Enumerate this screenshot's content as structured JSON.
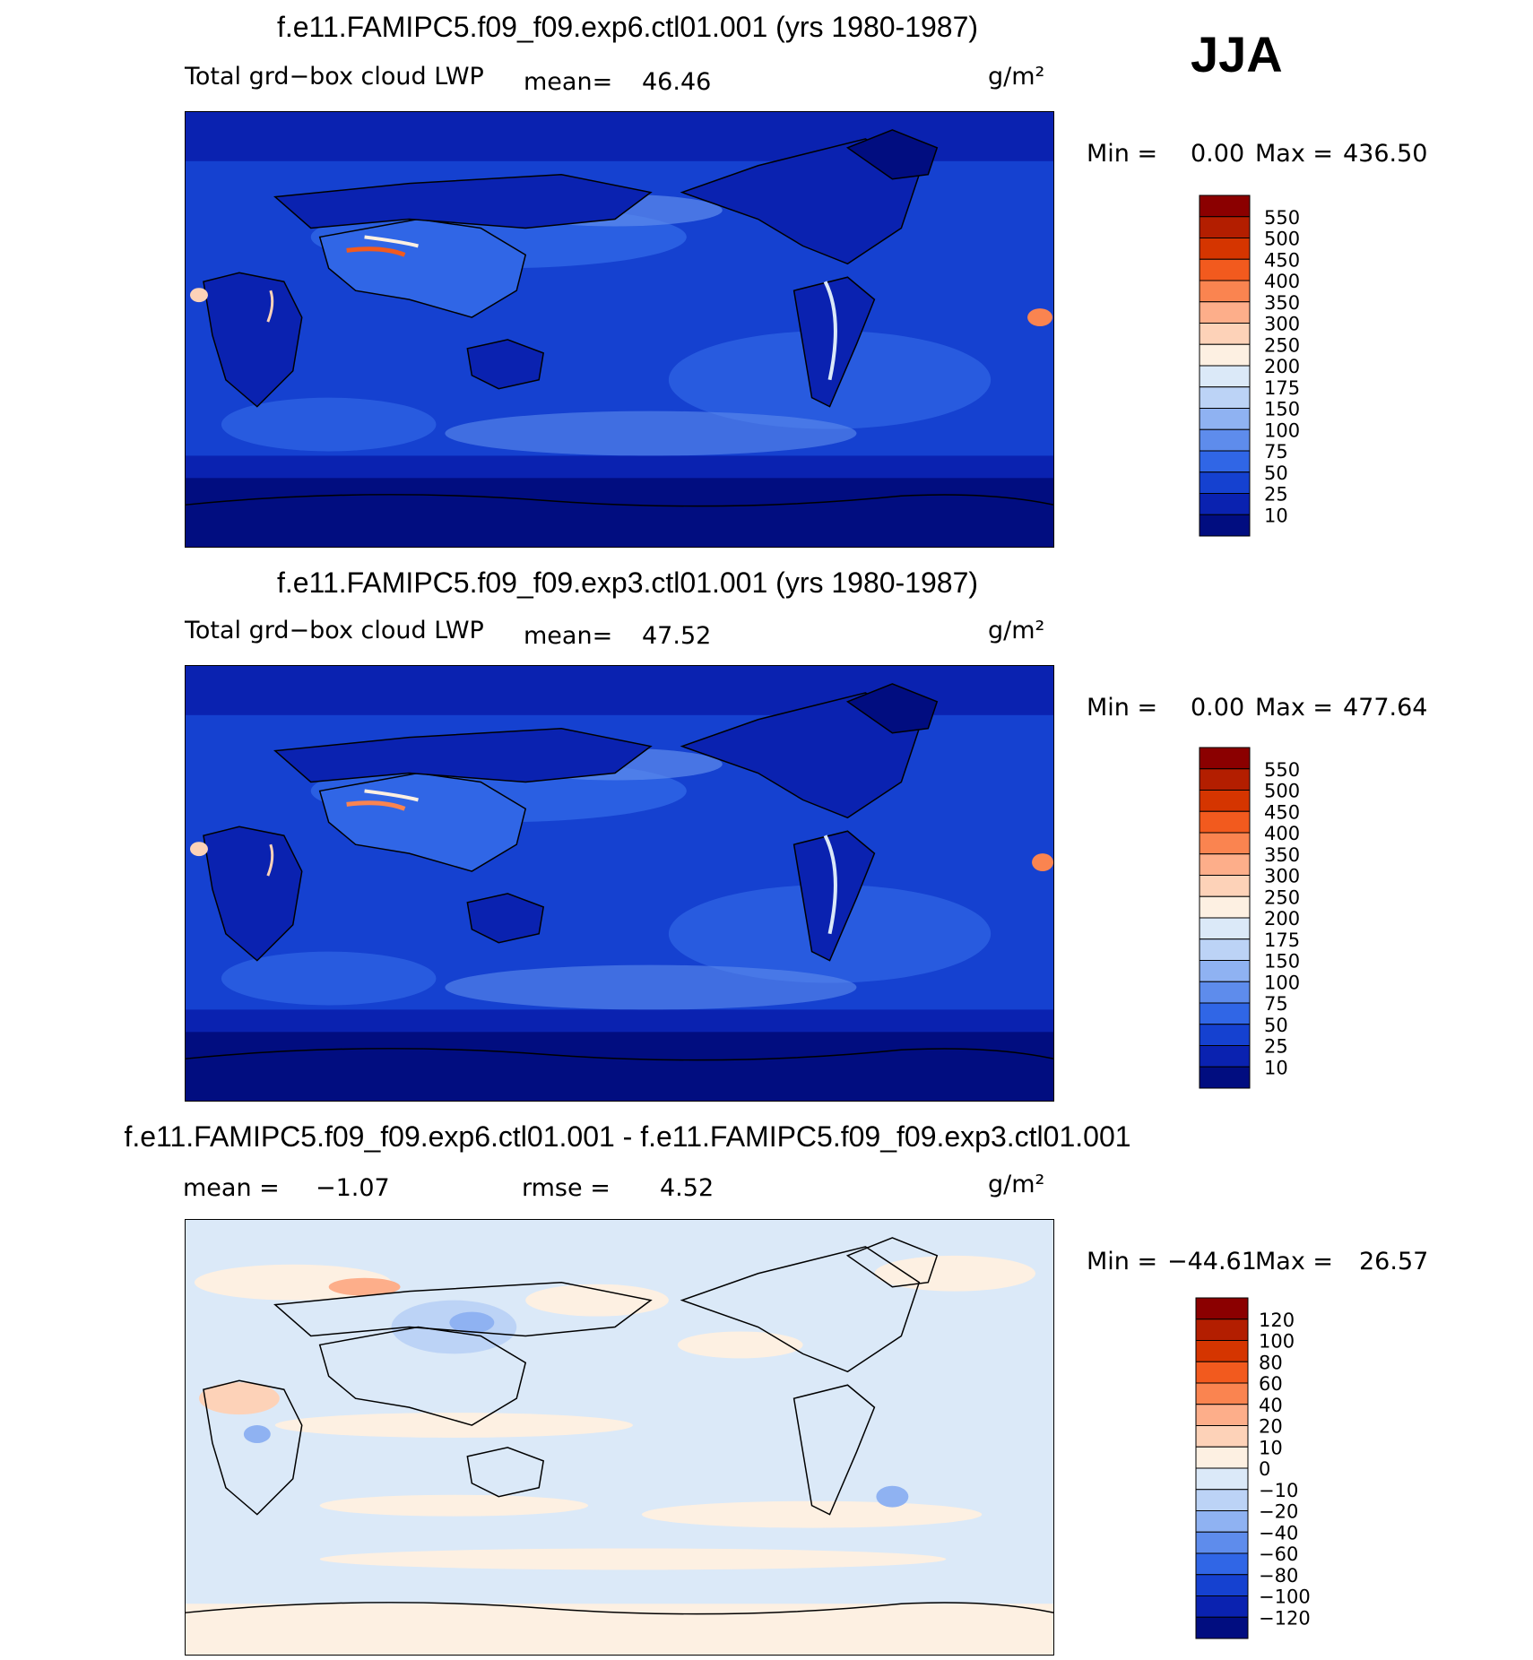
{
  "season": "JJA",
  "panels": [
    {
      "id": "exp6",
      "title": "f.e11.FAMIPC5.f09_f09.exp6.ctl01.001 (yrs 1980-1987)",
      "variable": "Total grd−box cloud LWP",
      "stat_label": "mean=",
      "stat_value": "46.46",
      "units": "g/m²",
      "min_label": "Min =",
      "min_value": "0.00",
      "max_label": "Max =",
      "max_value": "436.50"
    },
    {
      "id": "exp3",
      "title": "f.e11.FAMIPC5.f09_f09.exp3.ctl01.001 (yrs 1980-1987)",
      "variable": "Total grd−box cloud LWP",
      "stat_label": "mean=",
      "stat_value": "47.52",
      "units": "g/m²",
      "min_label": "Min =",
      "min_value": "0.00",
      "max_label": "Max =",
      "max_value": "477.64"
    },
    {
      "id": "diff",
      "title": "f.e11.FAMIPC5.f09_f09.exp6.ctl01.001 - f.e11.FAMIPC5.f09_f09.exp3.ctl01.001",
      "mean_label": "mean =",
      "mean_value": "−1.07",
      "rmse_label": "rmse =",
      "rmse_value": "4.52",
      "units": "g/m²",
      "min_label": "Min =",
      "min_value": "−44.61",
      "max_label": "Max =",
      "max_value": "26.57"
    }
  ],
  "colorbar_lwp": {
    "labels": [
      "550",
      "500",
      "450",
      "400",
      "350",
      "300",
      "250",
      "200",
      "175",
      "150",
      "100",
      "75",
      "50",
      "25",
      "10"
    ],
    "colors": [
      "#8b0000",
      "#b31e00",
      "#d53500",
      "#f25a1e",
      "#fa8450",
      "#fdae8a",
      "#fdd2b8",
      "#fdf0e2",
      "#dbe9f8",
      "#bcd3f6",
      "#8fb2f2",
      "#5e8cec",
      "#3066e6",
      "#1541d0",
      "#0a22b0",
      "#010d80"
    ]
  },
  "colorbar_diff": {
    "labels": [
      "120",
      "100",
      "80",
      "60",
      "40",
      "20",
      "10",
      "0",
      "−10",
      "−20",
      "−40",
      "−60",
      "−80",
      "−100",
      "−120"
    ],
    "colors": [
      "#8b0000",
      "#b31e00",
      "#d53500",
      "#f25a1e",
      "#fa8450",
      "#fdae8a",
      "#fdd2b8",
      "#fdf0e2",
      "#dbe9f8",
      "#bcd3f6",
      "#8fb2f2",
      "#5e8cec",
      "#3066e6",
      "#1541d0",
      "#0a22b0",
      "#010d80"
    ]
  }
}
